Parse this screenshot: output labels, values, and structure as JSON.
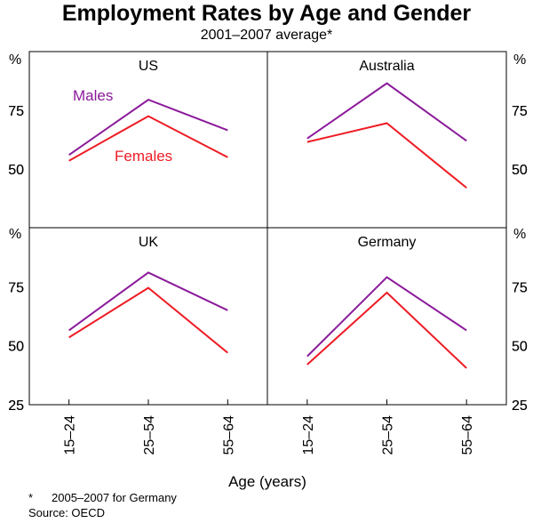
{
  "title": "Employment Rates by Age and Gender",
  "subtitle": "2001–2007 average*",
  "footnote_mark": "*",
  "footnote": "2005–2007 for Germany",
  "source": "Source: OECD",
  "xlabel": "Age (years)",
  "unit": "%",
  "colors": {
    "males": "#8b1a9a",
    "females": "#ee1c25"
  },
  "chart_data": [
    {
      "type": "line",
      "panel": "US",
      "categories": [
        "15–24",
        "25–54",
        "55–64"
      ],
      "ylim": [
        25,
        100
      ],
      "yticks": [
        50,
        75
      ],
      "series": [
        {
          "name": "Males",
          "values": [
            56,
            79.5,
            66.5
          ]
        },
        {
          "name": "Females",
          "values": [
            53.5,
            72.5,
            55
          ]
        }
      ]
    },
    {
      "type": "line",
      "panel": "Australia",
      "categories": [
        "15–24",
        "25–54",
        "55–64"
      ],
      "ylim": [
        25,
        100
      ],
      "yticks": [
        50,
        75
      ],
      "series": [
        {
          "name": "Males",
          "values": [
            63,
            86.5,
            62
          ]
        },
        {
          "name": "Females",
          "values": [
            61.5,
            69.5,
            42
          ]
        }
      ]
    },
    {
      "type": "line",
      "panel": "UK",
      "categories": [
        "15–24",
        "25–54",
        "55–64"
      ],
      "ylim": [
        25,
        100
      ],
      "yticks": [
        25,
        50,
        75
      ],
      "series": [
        {
          "name": "Males",
          "values": [
            56.5,
            81,
            65
          ]
        },
        {
          "name": "Females",
          "values": [
            53.5,
            74.5,
            47
          ]
        }
      ]
    },
    {
      "type": "line",
      "panel": "Germany",
      "categories": [
        "15–24",
        "25–54",
        "55–64"
      ],
      "ylim": [
        25,
        100
      ],
      "yticks": [
        25,
        50,
        75
      ],
      "series": [
        {
          "name": "Males",
          "values": [
            45.5,
            79,
            56.5
          ]
        },
        {
          "name": "Females",
          "values": [
            42,
            72.5,
            40.5
          ]
        }
      ]
    }
  ]
}
